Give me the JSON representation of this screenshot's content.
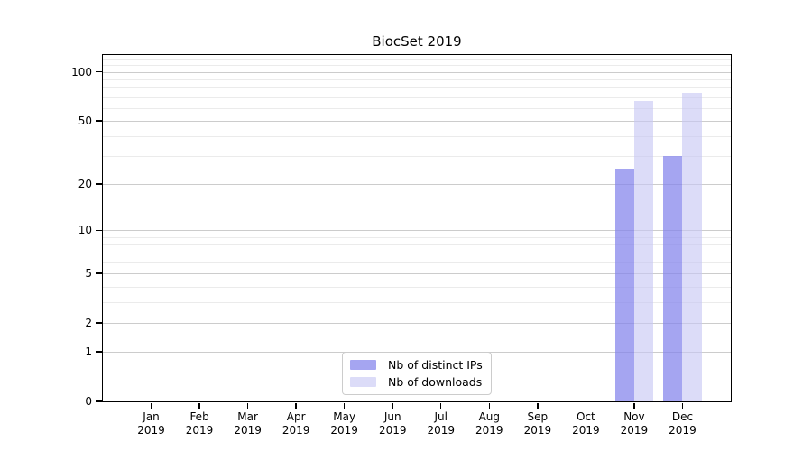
{
  "title": "BiocSet 2019",
  "chart_data": {
    "type": "bar",
    "scale": "log1p",
    "title": "BiocSet 2019",
    "xlabel": "",
    "ylabel": "",
    "categories": [
      "Jan",
      "Feb",
      "Mar",
      "Apr",
      "May",
      "Jun",
      "Jul",
      "Aug",
      "Sep",
      "Oct",
      "Nov",
      "Dec"
    ],
    "category_year": "2019",
    "series": [
      {
        "name": "Nb of distinct IPs",
        "fill": "rgba(130,130,236,0.72)",
        "values": [
          0,
          0,
          0,
          0,
          0,
          0,
          0,
          0,
          0,
          0,
          25,
          30
        ]
      },
      {
        "name": "Nb of downloads",
        "fill": "rgba(198,198,244,0.62)",
        "values": [
          0,
          0,
          0,
          0,
          0,
          0,
          0,
          0,
          0,
          0,
          66,
          74
        ]
      }
    ],
    "yticks": [
      0,
      1,
      2,
      5,
      10,
      20,
      50,
      100
    ],
    "minor_gridlines": [
      3,
      4,
      6,
      7,
      8,
      9,
      30,
      40,
      60,
      70,
      80,
      90,
      110,
      120
    ],
    "ylim": [
      0,
      127
    ],
    "grid": true,
    "legend_position": "inside lower center"
  },
  "colors": {
    "major_grid": "#cccccc",
    "minor_grid": "#ebebeb",
    "spine": "#000000",
    "text": "#000000"
  }
}
